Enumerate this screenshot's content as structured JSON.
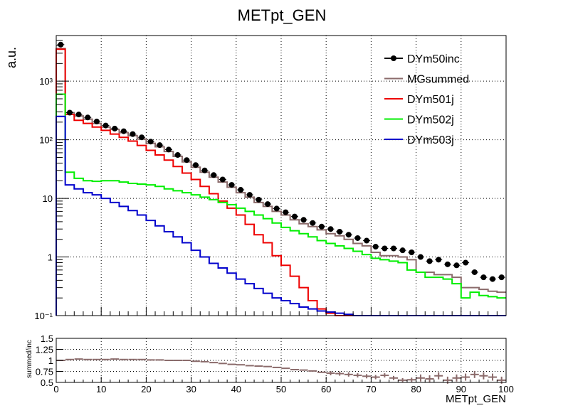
{
  "chart_data": [
    {
      "type": "line",
      "title": "METpt_GEN",
      "xlabel": "",
      "ylabel": "a.u.",
      "xlim": [
        0,
        100
      ],
      "ylim": [
        0.1,
        6000
      ],
      "yscale": "log",
      "grid": true,
      "legend_position": "top-right",
      "x_ticks": [
        "0",
        "10",
        "20",
        "30",
        "40",
        "50",
        "60",
        "70",
        "80",
        "90",
        "100"
      ],
      "y_ticks": [
        "10⁻¹",
        "1",
        "10",
        "10²",
        "10³"
      ],
      "series": [
        {
          "name": "DYm50inc",
          "style": "points",
          "color": "#000000",
          "x": [
            1,
            3,
            5,
            7,
            9,
            11,
            13,
            15,
            17,
            19,
            21,
            23,
            25,
            27,
            29,
            31,
            33,
            35,
            37,
            39,
            41,
            43,
            45,
            47,
            49,
            51,
            53,
            55,
            57,
            59,
            61,
            63,
            65,
            67,
            69,
            71,
            73,
            75,
            77,
            79,
            81,
            83,
            85,
            87,
            89,
            91,
            93,
            95,
            97,
            99
          ],
          "values": [
            4200,
            290,
            270,
            240,
            205,
            175,
            155,
            140,
            125,
            110,
            93,
            81,
            68,
            55,
            45,
            37,
            30,
            25,
            21,
            17,
            14,
            11.5,
            9.5,
            8,
            6.7,
            5.8,
            4.9,
            4.3,
            3.8,
            3.3,
            3.0,
            2.7,
            2.4,
            2.1,
            1.9,
            1.5,
            1.4,
            1.4,
            1.3,
            1.2,
            1.0,
            0.85,
            0.9,
            0.75,
            0.72,
            0.8,
            0.55,
            0.45,
            0.42,
            0.45
          ]
        },
        {
          "name": "MGsummed",
          "style": "step",
          "color": "#8b6b6b",
          "values": [
            3600,
            290,
            255,
            225,
            190,
            165,
            150,
            132,
            118,
            103,
            87,
            76,
            63,
            52,
            42,
            34,
            28,
            23,
            19,
            15.5,
            12.5,
            10.5,
            8.5,
            7.3,
            6.0,
            5.2,
            4.3,
            3.7,
            3.3,
            2.9,
            2.5,
            2.3,
            2.0,
            1.7,
            1.55,
            1.2,
            1.05,
            1.05,
            1.0,
            0.9,
            0.55,
            0.55,
            0.5,
            0.5,
            0.45,
            0.3,
            0.3,
            0.28,
            0.26,
            0.25
          ]
        },
        {
          "name": "DYm501j",
          "style": "step",
          "color": "#ee0000",
          "values": [
            3500,
            270,
            215,
            190,
            165,
            145,
            125,
            110,
            95,
            80,
            66,
            55,
            45,
            35,
            27,
            21,
            16,
            12,
            9,
            6.8,
            5.2,
            3.6,
            2.4,
            1.75,
            1.05,
            0.72,
            0.47,
            0.3,
            0.18,
            0.13,
            0.11,
            0.1,
            0.1,
            0.1,
            0.1,
            0.1,
            0.1,
            0.1,
            0.1,
            0.1,
            0.1,
            0.1,
            0.1,
            0.1,
            0.1,
            0.1,
            0.1,
            0.1,
            0.1,
            0.1
          ]
        },
        {
          "name": "DYm502j",
          "style": "step",
          "color": "#00ee00",
          "values": [
            600,
            28,
            22,
            20,
            19.5,
            20,
            20,
            19,
            18,
            17.5,
            17,
            16,
            14.5,
            13.5,
            12.5,
            11.5,
            10.5,
            9.5,
            8.5,
            7.8,
            6.8,
            6.0,
            5.2,
            4.5,
            3.8,
            3.2,
            2.8,
            2.5,
            2.2,
            1.9,
            1.7,
            1.55,
            1.4,
            1.25,
            1.1,
            0.95,
            0.9,
            0.85,
            0.8,
            0.6,
            0.55,
            0.45,
            0.45,
            0.42,
            0.35,
            0.2,
            0.25,
            0.22,
            0.21,
            0.2
          ]
        },
        {
          "name": "DYm503j",
          "style": "step",
          "color": "#0000cc",
          "values": [
            250,
            17,
            14.5,
            12.5,
            11.5,
            10,
            8.5,
            7.3,
            6.2,
            5.2,
            4.2,
            3.4,
            2.7,
            2.2,
            1.75,
            1.3,
            1.0,
            0.78,
            0.65,
            0.53,
            0.42,
            0.35,
            0.29,
            0.24,
            0.2,
            0.18,
            0.16,
            0.14,
            0.13,
            0.12,
            0.115,
            0.11,
            0.105,
            0.1,
            0.1,
            0.1,
            0.1,
            0.1,
            0.1,
            0.1,
            0.1,
            0.1,
            0.1,
            0.1,
            0.1,
            0.1,
            0.1,
            0.1,
            0.1,
            0.1
          ]
        }
      ]
    },
    {
      "type": "scatter",
      "xlabel": "METpt_GEN",
      "ylabel": "summed/inc",
      "xlim": [
        0,
        100
      ],
      "ylim": [
        0.5,
        1.5
      ],
      "grid": true,
      "x_ticks": [
        "0",
        "10",
        "20",
        "30",
        "40",
        "50",
        "60",
        "70",
        "80",
        "90",
        "100"
      ],
      "y_ticks": [
        "0.5",
        "0.75",
        "1",
        "1.25",
        "1.5"
      ],
      "series": [
        {
          "color": "#8b6b6b",
          "x": [
            1,
            3,
            5,
            7,
            9,
            11,
            13,
            15,
            17,
            19,
            21,
            23,
            25,
            27,
            29,
            31,
            33,
            35,
            37,
            39,
            41,
            43,
            45,
            47,
            49,
            51,
            53,
            55,
            57,
            59,
            61,
            63,
            65,
            67,
            69,
            71,
            73,
            75,
            77,
            79,
            81,
            83,
            85,
            87,
            89,
            91,
            93,
            95,
            97,
            99
          ],
          "values": [
            1.0,
            1.02,
            1.03,
            1.02,
            1.02,
            1.02,
            1.03,
            1.02,
            1.02,
            1.02,
            1.01,
            1.01,
            1.0,
            1.0,
            1.0,
            0.98,
            0.97,
            0.95,
            0.93,
            0.91,
            0.9,
            0.88,
            0.87,
            0.86,
            0.84,
            0.82,
            0.79,
            0.78,
            0.76,
            0.73,
            0.71,
            0.7,
            0.68,
            0.66,
            0.64,
            0.62,
            0.66,
            0.6,
            0.55,
            0.56,
            0.6,
            0.58,
            0.65,
            0.55,
            0.6,
            0.62,
            0.68,
            0.65,
            0.62,
            0.55
          ]
        }
      ]
    }
  ],
  "legend": [
    {
      "label": "DYm50inc",
      "color": "#000000",
      "marker": "point"
    },
    {
      "label": "MGsummed",
      "color": "#8b6b6b",
      "marker": "line"
    },
    {
      "label": "DYm501j",
      "color": "#ee0000",
      "marker": "line"
    },
    {
      "label": "DYm502j",
      "color": "#00ee00",
      "marker": "line"
    },
    {
      "label": "DYm503j",
      "color": "#0000cc",
      "marker": "line"
    }
  ]
}
